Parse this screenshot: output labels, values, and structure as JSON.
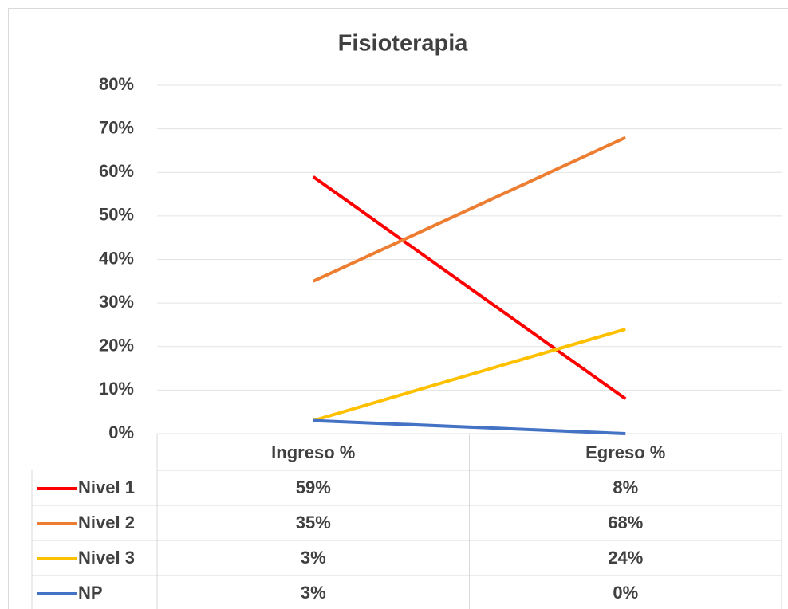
{
  "chart_data": {
    "type": "line",
    "title": "Fisioterapia",
    "categories": [
      "Ingreso %",
      "Egreso %"
    ],
    "series": [
      {
        "name": "Nivel 1",
        "color": "#ff0000",
        "values": [
          59,
          8
        ],
        "value_labels": [
          "59%",
          "8%"
        ]
      },
      {
        "name": "Nivel 2",
        "color": "#ed7d31",
        "values": [
          35,
          68
        ],
        "value_labels": [
          "35%",
          "68%"
        ]
      },
      {
        "name": "Nivel 3",
        "color": "#ffc000",
        "values": [
          3,
          24
        ],
        "value_labels": [
          "3%",
          "24%"
        ]
      },
      {
        "name": "NP",
        "color": "#4472c4",
        "values": [
          3,
          0
        ],
        "value_labels": [
          "3%",
          "0%"
        ]
      }
    ],
    "ylim": [
      0,
      80
    ],
    "yticks": [
      {
        "value": 0,
        "label": "0%"
      },
      {
        "value": 10,
        "label": "10%"
      },
      {
        "value": 20,
        "label": "20%"
      },
      {
        "value": 30,
        "label": "30%"
      },
      {
        "value": 40,
        "label": "40%"
      },
      {
        "value": 50,
        "label": "50%"
      },
      {
        "value": 60,
        "label": "60%"
      },
      {
        "value": 70,
        "label": "70%"
      },
      {
        "value": 80,
        "label": "80%"
      }
    ],
    "grid": true
  }
}
